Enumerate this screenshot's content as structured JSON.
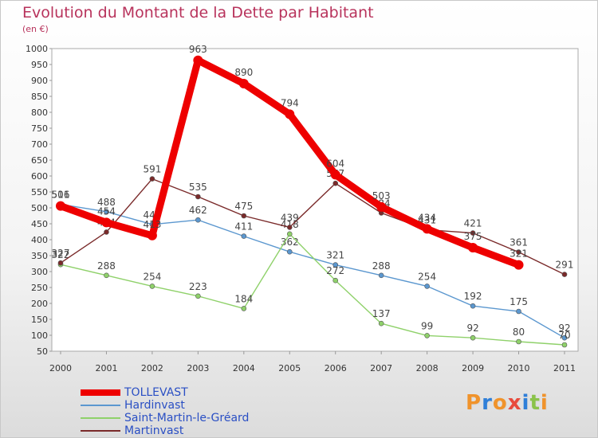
{
  "header": {
    "title": "Evolution du Montant de la Dette par Habitant",
    "unit": "(en €)"
  },
  "logo": {
    "text": "Proxiti",
    "colors": [
      "#f0932b",
      "#2f7fd8",
      "#f0932b",
      "#e84a3c",
      "#2f7fd8",
      "#8bc34a",
      "#f0932b"
    ]
  },
  "chart_data": {
    "type": "line",
    "title": "Evolution du Montant de la Dette par Habitant",
    "ylabel": "(en €)",
    "xlabel": "",
    "x": [
      "2000",
      "2001",
      "2002",
      "2003",
      "2004",
      "2005",
      "2006",
      "2007",
      "2008",
      "2009",
      "2010",
      "2011"
    ],
    "ylim": [
      50,
      1000
    ],
    "yticks": [
      50,
      100,
      150,
      200,
      250,
      300,
      350,
      400,
      450,
      500,
      550,
      600,
      650,
      700,
      750,
      800,
      850,
      900,
      950,
      1000
    ],
    "grid": false,
    "legend_position": "bottom-left",
    "series": [
      {
        "name": "TOLLEVAST",
        "color": "#ee0000",
        "values": [
          506,
          454,
          413,
          963,
          890,
          794,
          604,
          503,
          434,
          375,
          321,
          null
        ]
      },
      {
        "name": "Hardinvast",
        "color": "#5b97cf",
        "values": [
          511,
          488,
          448,
          462,
          411,
          362,
          321,
          288,
          254,
          192,
          175,
          92
        ]
      },
      {
        "name": "Saint-Martin-le-Gréard",
        "color": "#8fd16a",
        "values": [
          322,
          288,
          254,
          223,
          184,
          418,
          272,
          137,
          99,
          92,
          80,
          70
        ]
      },
      {
        "name": "Martinvast",
        "color": "#7a2a2a",
        "values": [
          327,
          424,
          591,
          535,
          475,
          439,
          577,
          484,
          431,
          421,
          361,
          291
        ]
      }
    ]
  }
}
